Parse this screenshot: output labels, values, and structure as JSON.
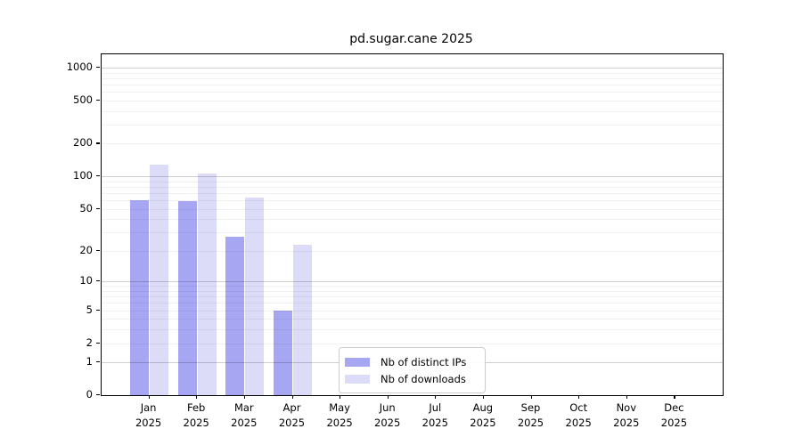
{
  "title": "pd.sugar.cane 2025",
  "chart_data": {
    "type": "bar",
    "title": "pd.sugar.cane 2025",
    "categories": [
      "Jan 2025",
      "Feb 2025",
      "Mar 2025",
      "Apr 2025",
      "May 2025",
      "Jun 2025",
      "Jul 2025",
      "Aug 2025",
      "Sep 2025",
      "Oct 2025",
      "Nov 2025",
      "Dec 2025"
    ],
    "series": [
      {
        "name": "Nb of distinct IPs",
        "color": "#a6a6f2",
        "values": [
          60,
          59,
          27,
          5,
          0,
          0,
          0,
          0,
          0,
          0,
          0,
          0
        ]
      },
      {
        "name": "Nb of downloads",
        "color": "#dcdcf8",
        "values": [
          127,
          107,
          63,
          23,
          0,
          0,
          0,
          0,
          0,
          0,
          0,
          0
        ]
      }
    ],
    "xlabel": "",
    "ylabel": "",
    "yscale": "log10(value+1)",
    "ylim": [
      0,
      1300
    ],
    "yticks": [
      1000,
      500,
      200,
      100,
      50,
      20,
      10,
      5,
      2,
      1,
      0
    ],
    "grid": {
      "orientation": "horizontal",
      "major": [
        1,
        10,
        100,
        1000
      ],
      "minor": [
        2,
        3,
        4,
        5,
        6,
        7,
        8,
        9,
        20,
        30,
        40,
        50,
        60,
        70,
        80,
        90,
        200,
        300,
        400,
        500,
        600,
        700,
        800,
        900
      ]
    },
    "legend_position": "lower center, inside axes"
  }
}
